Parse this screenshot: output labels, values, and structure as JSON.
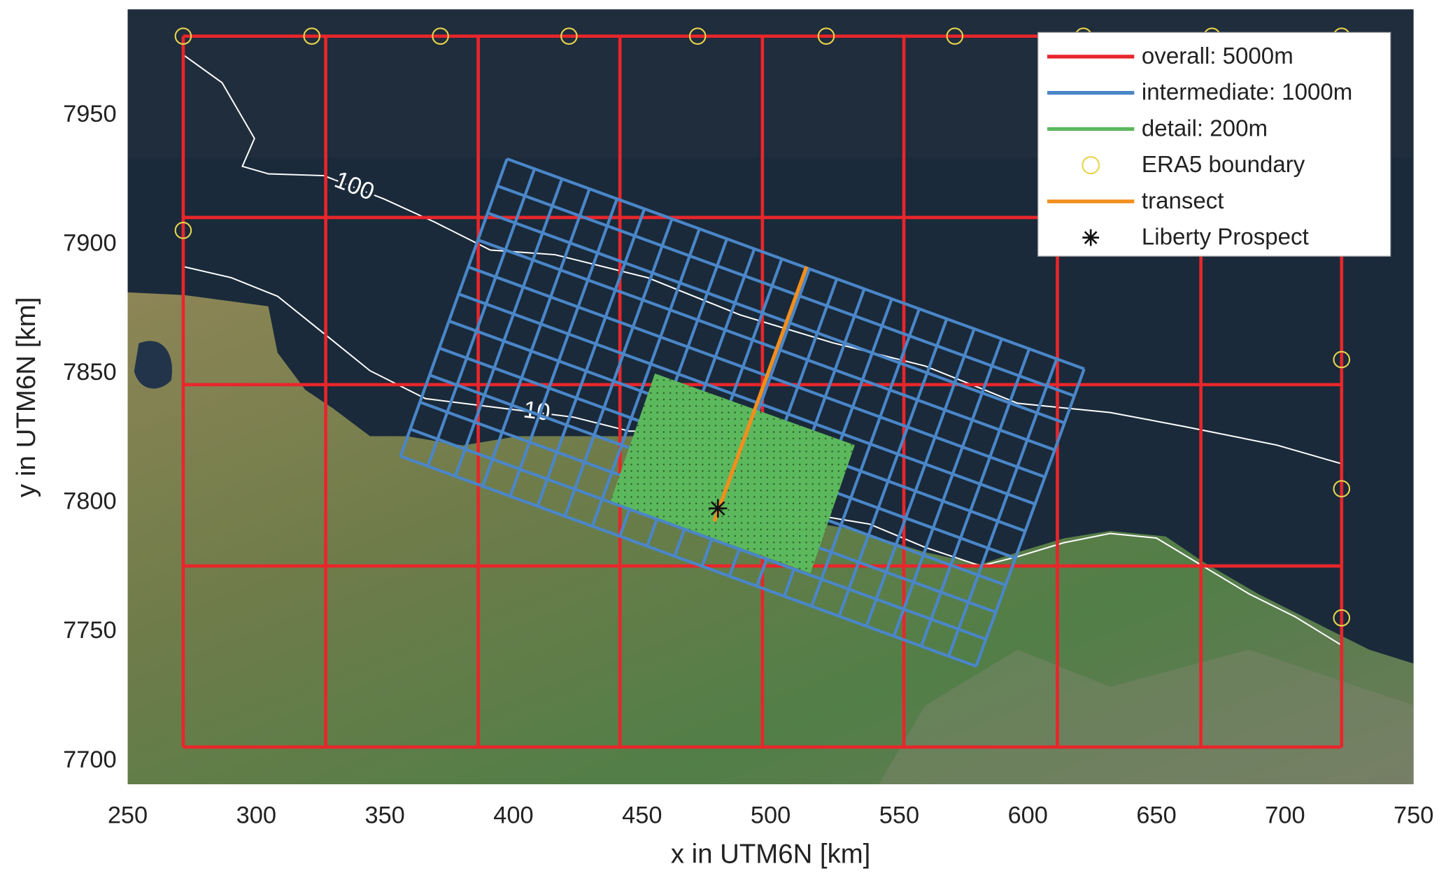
{
  "chart_data": {
    "type": "map",
    "x_label": "x in UTM6N [km]",
    "y_label": "y in UTM6N [km]",
    "xlim": [
      250,
      750
    ],
    "ylim": [
      7691,
      7991
    ],
    "xticks": [
      250,
      300,
      350,
      400,
      450,
      500,
      550,
      600,
      650,
      700,
      750
    ],
    "yticks": [
      7700,
      7750,
      7800,
      7850,
      7900,
      7950
    ],
    "legend": "upper right",
    "series": [
      {
        "name": "overall: 5000m",
        "color": "#e8262b",
        "xlines": [
          271.6,
          327,
          386.3,
          441.4,
          496.8,
          551.8,
          611.5,
          667.3,
          722
        ],
        "ylines": [
          7980.6,
          7910.4,
          7845.7,
          7775.5,
          7705.4
        ]
      },
      {
        "name": "intermediate: 1000m",
        "color": "#4a86c8",
        "x": [
          397.5,
          621.9,
          579.9,
          356.1
        ],
        "y": [
          7933.1,
          7851.8,
          7736.7,
          7818.0
        ],
        "columns": 21,
        "rows": 11
      },
      {
        "name": "detail: 200m",
        "color": "#5cb85c",
        "x": [
          455.0,
          532.7,
          515.5,
          437.8
        ],
        "y": [
          7850.0,
          7822.3,
          7772.7,
          7800.7
        ]
      },
      {
        "name": "ERA5 boundary",
        "color": "#e8d44d",
        "x": [
          271.6,
          321.6,
          371.6,
          421.6,
          471.6,
          521.6,
          571.6,
          621.6,
          671.6,
          722,
          271.6,
          722,
          722,
          722
        ],
        "y": [
          7980.6,
          7980.6,
          7980.6,
          7980.6,
          7980.6,
          7980.6,
          7980.6,
          7980.6,
          7980.6,
          7980.6,
          7905.4,
          7855.4,
          7805.4,
          7755.4
        ]
      },
      {
        "name": "transect",
        "color": "#f28e1c",
        "x": [
          514.0,
          478.1
        ],
        "y": [
          7891.4,
          7792.8
        ]
      },
      {
        "name": "Liberty Prospect",
        "color": "#111111",
        "x": [
          479.5
        ],
        "y": [
          7797.8
        ]
      }
    ],
    "contours": [
      {
        "level": 100,
        "x": [
          271.6,
          286.7,
          299.3,
          294.6,
          304.7,
          326.3,
          349.6,
          369.4,
          391.0,
          416.2,
          452.2,
          488.1,
          524.1,
          560.1,
          578.1,
          596.0,
          632.0,
          660.8,
          696.8,
          721.9
        ],
        "y": [
          7973.4,
          7962.6,
          7941.0,
          7930.2,
          7927.3,
          7926.6,
          7917.6,
          7908.6,
          7897.8,
          7896.0,
          7887.1,
          7872.7,
          7861.9,
          7852.9,
          7845.7,
          7838.5,
          7834.9,
          7829.5,
          7822.3,
          7815.1
        ]
      },
      {
        "level": 10,
        "x": [
          271.6,
          290.3,
          308.3,
          326.3,
          344.2,
          365.8,
          394.6,
          423.4,
          445.0,
          463.0,
          477.3,
          495.3,
          516.9,
          538.5,
          560.1,
          581.7,
          596.0,
          614.0,
          632.0,
          650.0,
          668.0,
          686.0,
          704.0,
          722.0
        ],
        "y": [
          7891.4,
          7887.1,
          7879.9,
          7865.5,
          7851.1,
          7840.3,
          7836.7,
          7833.1,
          7827.7,
          7827.7,
          7815.1,
          7800.7,
          7795.3,
          7791.7,
          7782.7,
          7775.5,
          7779.1,
          7784.5,
          7788.1,
          7786.3,
          7775.5,
          7764.7,
          7755.8,
          7744.8
        ]
      }
    ]
  }
}
